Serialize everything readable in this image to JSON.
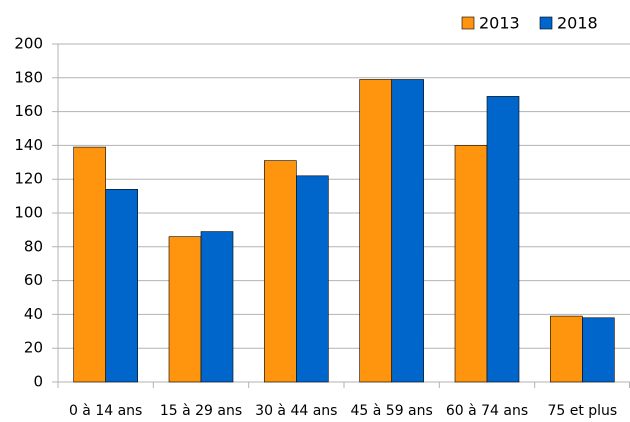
{
  "chart_data": {
    "type": "bar",
    "categories": [
      "0 à 14 ans",
      "15 à 29 ans",
      "30 à 44 ans",
      "45 à 59 ans",
      "60 à 74 ans",
      "75 et plus"
    ],
    "series": [
      {
        "name": "2013",
        "color": "#ff950e",
        "values": [
          139,
          86,
          131,
          179,
          140,
          39
        ]
      },
      {
        "name": "2018",
        "color": "#0066cc",
        "values": [
          114,
          89,
          122,
          179,
          169,
          38
        ]
      }
    ],
    "ylim": [
      0,
      200
    ],
    "yticks": [
      0,
      20,
      40,
      60,
      80,
      100,
      120,
      140,
      160,
      180,
      200
    ],
    "grid": true,
    "legend": "top-right"
  }
}
